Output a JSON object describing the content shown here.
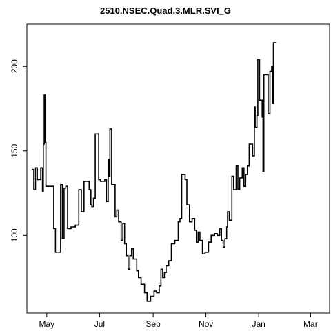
{
  "chart_data": {
    "type": "line",
    "title": "2510.NSEC.Quad.3.MLR.SVI_G",
    "xlabel": "",
    "ylabel": "",
    "x_ticks": [
      {
        "label": "May",
        "date": "2023-05-01"
      },
      {
        "label": "Jul",
        "date": "2023-07-01"
      },
      {
        "label": "Sep",
        "date": "2023-09-01"
      },
      {
        "label": "Nov",
        "date": "2023-11-01"
      },
      {
        "label": "Jan",
        "date": "2024-01-01"
      },
      {
        "label": "Mar",
        "date": "2024-03-01"
      }
    ],
    "y_ticks": [
      100,
      150,
      200
    ],
    "xlim": [
      "2023-04-08",
      "2024-03-23"
    ],
    "ylim": [
      54,
      225
    ],
    "grid": false,
    "line_style": "step",
    "series": [
      {
        "color": "#000000",
        "points": [
          [
            "2023-04-14",
            139
          ],
          [
            "2023-04-16",
            127
          ],
          [
            "2023-04-18",
            140
          ],
          [
            "2023-04-20",
            133
          ],
          [
            "2023-04-24",
            140
          ],
          [
            "2023-04-26",
            126
          ],
          [
            "2023-04-27",
            154
          ],
          [
            "2023-04-28",
            183
          ],
          [
            "2023-04-29",
            155
          ],
          [
            "2023-04-30",
            129
          ],
          [
            "2023-05-03",
            129
          ],
          [
            "2023-05-07",
            129
          ],
          [
            "2023-05-09",
            104
          ],
          [
            "2023-05-11",
            90
          ],
          [
            "2023-05-17",
            130
          ],
          [
            "2023-05-19",
            98
          ],
          [
            "2023-05-21",
            128
          ],
          [
            "2023-05-23",
            129
          ],
          [
            "2023-05-25",
            104
          ],
          [
            "2023-05-29",
            105
          ],
          [
            "2023-06-03",
            106
          ],
          [
            "2023-06-07",
            127
          ],
          [
            "2023-06-10",
            114
          ],
          [
            "2023-06-13",
            132
          ],
          [
            "2023-06-19",
            127
          ],
          [
            "2023-06-21",
            118
          ],
          [
            "2023-06-22",
            117
          ],
          [
            "2023-06-24",
            122
          ],
          [
            "2023-06-26",
            160
          ],
          [
            "2023-06-30",
            133
          ],
          [
            "2023-07-02",
            132
          ],
          [
            "2023-07-07",
            133
          ],
          [
            "2023-07-09",
            120
          ],
          [
            "2023-07-11",
            145
          ],
          [
            "2023-07-12",
            135
          ],
          [
            "2023-07-13",
            163
          ],
          [
            "2023-07-15",
            130
          ],
          [
            "2023-07-19",
            111
          ],
          [
            "2023-07-21",
            115
          ],
          [
            "2023-07-23",
            108
          ],
          [
            "2023-07-26",
            97
          ],
          [
            "2023-07-28",
            107
          ],
          [
            "2023-07-30",
            95
          ],
          [
            "2023-08-01",
            88
          ],
          [
            "2023-08-03",
            80
          ],
          [
            "2023-08-05",
            88
          ],
          [
            "2023-08-07",
            92
          ],
          [
            "2023-08-09",
            86
          ],
          [
            "2023-08-13",
            79
          ],
          [
            "2023-08-15",
            75
          ],
          [
            "2023-08-18",
            71
          ],
          [
            "2023-08-22",
            66
          ],
          [
            "2023-08-25",
            61
          ],
          [
            "2023-08-29",
            64
          ],
          [
            "2023-09-02",
            67
          ],
          [
            "2023-09-05",
            66
          ],
          [
            "2023-09-08",
            70
          ],
          [
            "2023-09-10",
            80
          ],
          [
            "2023-09-12",
            75
          ],
          [
            "2023-09-14",
            78
          ],
          [
            "2023-09-16",
            82
          ],
          [
            "2023-09-19",
            85
          ],
          [
            "2023-09-22",
            95
          ],
          [
            "2023-09-26",
            97
          ],
          [
            "2023-09-30",
            108
          ],
          [
            "2023-10-02",
            110
          ],
          [
            "2023-10-04",
            136
          ],
          [
            "2023-10-08",
            133
          ],
          [
            "2023-10-10",
            118
          ],
          [
            "2023-10-13",
            108
          ],
          [
            "2023-10-16",
            110
          ],
          [
            "2023-10-19",
            103
          ],
          [
            "2023-10-21",
            96
          ],
          [
            "2023-10-23",
            102
          ],
          [
            "2023-10-25",
            97
          ],
          [
            "2023-10-28",
            89
          ],
          [
            "2023-10-31",
            90
          ],
          [
            "2023-11-04",
            96
          ],
          [
            "2023-11-07",
            100
          ],
          [
            "2023-11-11",
            101
          ],
          [
            "2023-11-14",
            100
          ],
          [
            "2023-11-17",
            104
          ],
          [
            "2023-11-19",
            97
          ],
          [
            "2023-11-21",
            93
          ],
          [
            "2023-11-23",
            98
          ],
          [
            "2023-11-25",
            105
          ],
          [
            "2023-11-26",
            114
          ],
          [
            "2023-11-28",
            109
          ],
          [
            "2023-12-01",
            135
          ],
          [
            "2023-12-03",
            127
          ],
          [
            "2023-12-06",
            141
          ],
          [
            "2023-12-08",
            127
          ],
          [
            "2023-12-10",
            134
          ],
          [
            "2023-12-13",
            140
          ],
          [
            "2023-12-15",
            129
          ],
          [
            "2023-12-17",
            136
          ],
          [
            "2023-12-19",
            141
          ],
          [
            "2023-12-21",
            154
          ],
          [
            "2023-12-25",
            147
          ],
          [
            "2023-12-27",
            176
          ],
          [
            "2023-12-28",
            164
          ],
          [
            "2023-12-30",
            171
          ],
          [
            "2023-12-31",
            204
          ],
          [
            "2024-01-02",
            180
          ],
          [
            "2024-01-05",
            170
          ],
          [
            "2024-01-06",
            138
          ],
          [
            "2024-01-07",
            195
          ],
          [
            "2024-01-12",
            172
          ],
          [
            "2024-01-14",
            197
          ],
          [
            "2024-01-16",
            200
          ],
          [
            "2024-01-17",
            178
          ],
          [
            "2024-01-18",
            214
          ],
          [
            "2024-01-21",
            214
          ]
        ]
      }
    ]
  }
}
